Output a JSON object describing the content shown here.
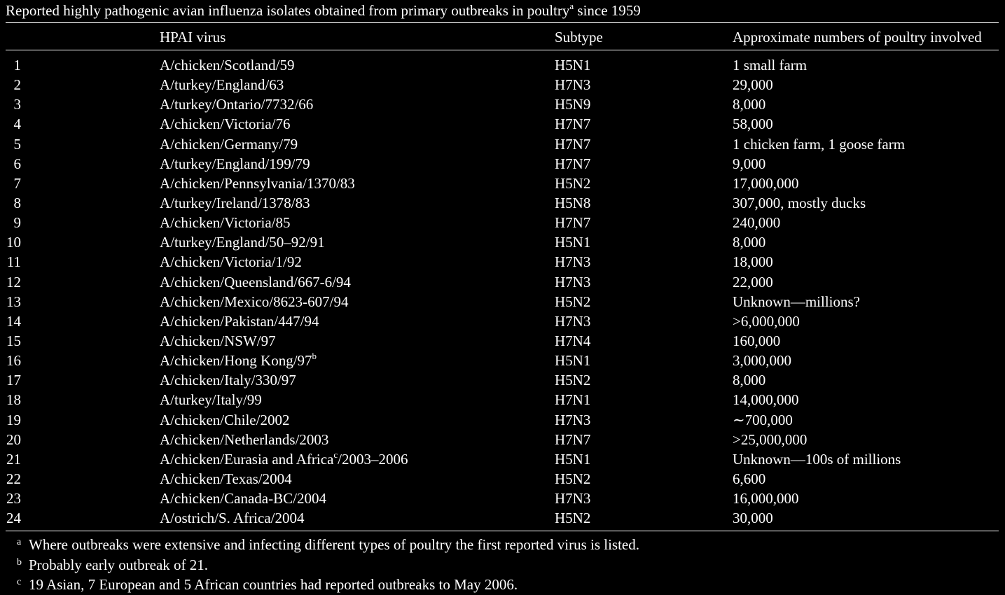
{
  "caption": {
    "text": "Reported highly pathogenic avian influenza isolates obtained from primary outbreaks in poultry",
    "sup": "a",
    "suffix": " since 1959"
  },
  "headers": {
    "virus": "HPAI virus",
    "subtype": "Subtype",
    "amount": "Approximate numbers of poultry involved"
  },
  "rows": [
    {
      "num": "1",
      "virus": "A/chicken/Scotland/59",
      "sup": "",
      "virus_suffix": "",
      "subtype": "H5N1",
      "amount": "1 small farm"
    },
    {
      "num": "2",
      "virus": "A/turkey/England/63",
      "sup": "",
      "virus_suffix": "",
      "subtype": "H7N3",
      "amount": "29,000"
    },
    {
      "num": "3",
      "virus": "A/turkey/Ontario/7732/66",
      "sup": "",
      "virus_suffix": "",
      "subtype": "H5N9",
      "amount": "8,000"
    },
    {
      "num": "4",
      "virus": "A/chicken/Victoria/76",
      "sup": "",
      "virus_suffix": "",
      "subtype": "H7N7",
      "amount": "58,000"
    },
    {
      "num": "5",
      "virus": "A/chicken/Germany/79",
      "sup": "",
      "virus_suffix": "",
      "subtype": "H7N7",
      "amount": "1 chicken farm, 1 goose farm"
    },
    {
      "num": "6",
      "virus": "A/turkey/England/199/79",
      "sup": "",
      "virus_suffix": "",
      "subtype": "H7N7",
      "amount": "9,000"
    },
    {
      "num": "7",
      "virus": "A/chicken/Pennsylvania/1370/83",
      "sup": "",
      "virus_suffix": "",
      "subtype": "H5N2",
      "amount": "17,000,000"
    },
    {
      "num": "8",
      "virus": "A/turkey/Ireland/1378/83",
      "sup": "",
      "virus_suffix": "",
      "subtype": "H5N8",
      "amount": "307,000, mostly ducks"
    },
    {
      "num": "9",
      "virus": "A/chicken/Victoria/85",
      "sup": "",
      "virus_suffix": "",
      "subtype": "H7N7",
      "amount": "240,000"
    },
    {
      "num": "10",
      "virus": "A/turkey/England/50–92/91",
      "sup": "",
      "virus_suffix": "",
      "subtype": "H5N1",
      "amount": "8,000"
    },
    {
      "num": "11",
      "virus": "A/chicken/Victoria/1/92",
      "sup": "",
      "virus_suffix": "",
      "subtype": "H7N3",
      "amount": "18,000"
    },
    {
      "num": "12",
      "virus": "A/chicken/Queensland/667-6/94",
      "sup": "",
      "virus_suffix": "",
      "subtype": "H7N3",
      "amount": "22,000"
    },
    {
      "num": "13",
      "virus": "A/chicken/Mexico/8623-607/94",
      "sup": "",
      "virus_suffix": "",
      "subtype": "H5N2",
      "amount": "Unknown—millions?"
    },
    {
      "num": "14",
      "virus": "A/chicken/Pakistan/447/94",
      "sup": "",
      "virus_suffix": "",
      "subtype": "H7N3",
      "amount": ">6,000,000"
    },
    {
      "num": "15",
      "virus": "A/chicken/NSW/97",
      "sup": "",
      "virus_suffix": "",
      "subtype": "H7N4",
      "amount": "160,000"
    },
    {
      "num": "16",
      "virus": "A/chicken/Hong Kong/97",
      "sup": "b",
      "virus_suffix": "",
      "subtype": "H5N1",
      "amount": "3,000,000"
    },
    {
      "num": "17",
      "virus": "A/chicken/Italy/330/97",
      "sup": "",
      "virus_suffix": "",
      "subtype": "H5N2",
      "amount": "8,000"
    },
    {
      "num": "18",
      "virus": "A/turkey/Italy/99",
      "sup": "",
      "virus_suffix": "",
      "subtype": "H7N1",
      "amount": "14,000,000"
    },
    {
      "num": "19",
      "virus": "A/chicken/Chile/2002",
      "sup": "",
      "virus_suffix": "",
      "subtype": "H7N3",
      "amount": "∼700,000"
    },
    {
      "num": "20",
      "virus": "A/chicken/Netherlands/2003",
      "sup": "",
      "virus_suffix": "",
      "subtype": "H7N7",
      "amount": ">25,000,000"
    },
    {
      "num": "21",
      "virus": "A/chicken/Eurasia and Africa",
      "sup": "c",
      "virus_suffix": "/2003–2006",
      "subtype": "H5N1",
      "amount": "Unknown—100s of millions"
    },
    {
      "num": "22",
      "virus": "A/chicken/Texas/2004",
      "sup": "",
      "virus_suffix": "",
      "subtype": "H5N2",
      "amount": "6,600"
    },
    {
      "num": "23",
      "virus": "A/chicken/Canada-BC/2004",
      "sup": "",
      "virus_suffix": "",
      "subtype": "H7N3",
      "amount": "16,000,000"
    },
    {
      "num": "24",
      "virus": "A/ostrich/S. Africa/2004",
      "sup": "",
      "virus_suffix": "",
      "subtype": "H5N2",
      "amount": "30,000"
    }
  ],
  "footnotes": [
    {
      "mark": "a",
      "text": "Where outbreaks were extensive and infecting different types of poultry the first reported virus is listed."
    },
    {
      "mark": "b",
      "text": "Probably early outbreak of 21."
    },
    {
      "mark": "c",
      "text": "19 Asian, 7 European and 5 African countries had reported outbreaks to May 2006."
    }
  ]
}
